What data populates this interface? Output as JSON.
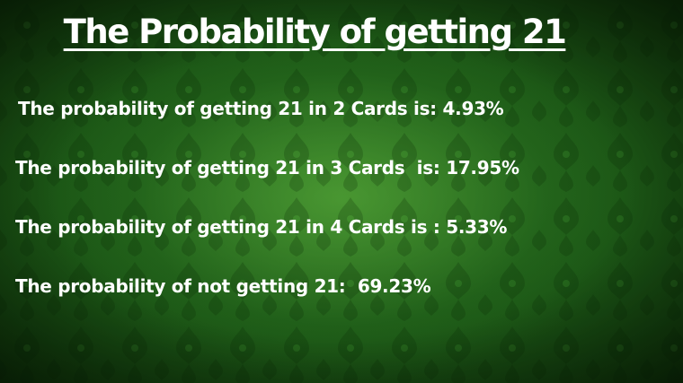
{
  "title": "The Probability of getting 21",
  "lines": [
    "The probability of getting 21 in 2 Cards is: 4.93%",
    "The probability of getting 21 in 3 Cards  is: 17.95%",
    "The probability of getting 21 in 4 Cards is : 5.33%",
    "The probability of not getting 21:  69.23%"
  ],
  "colors": {
    "background_center": "#4fa035",
    "background_edge": "#0e3309",
    "text": "#ffffff"
  }
}
